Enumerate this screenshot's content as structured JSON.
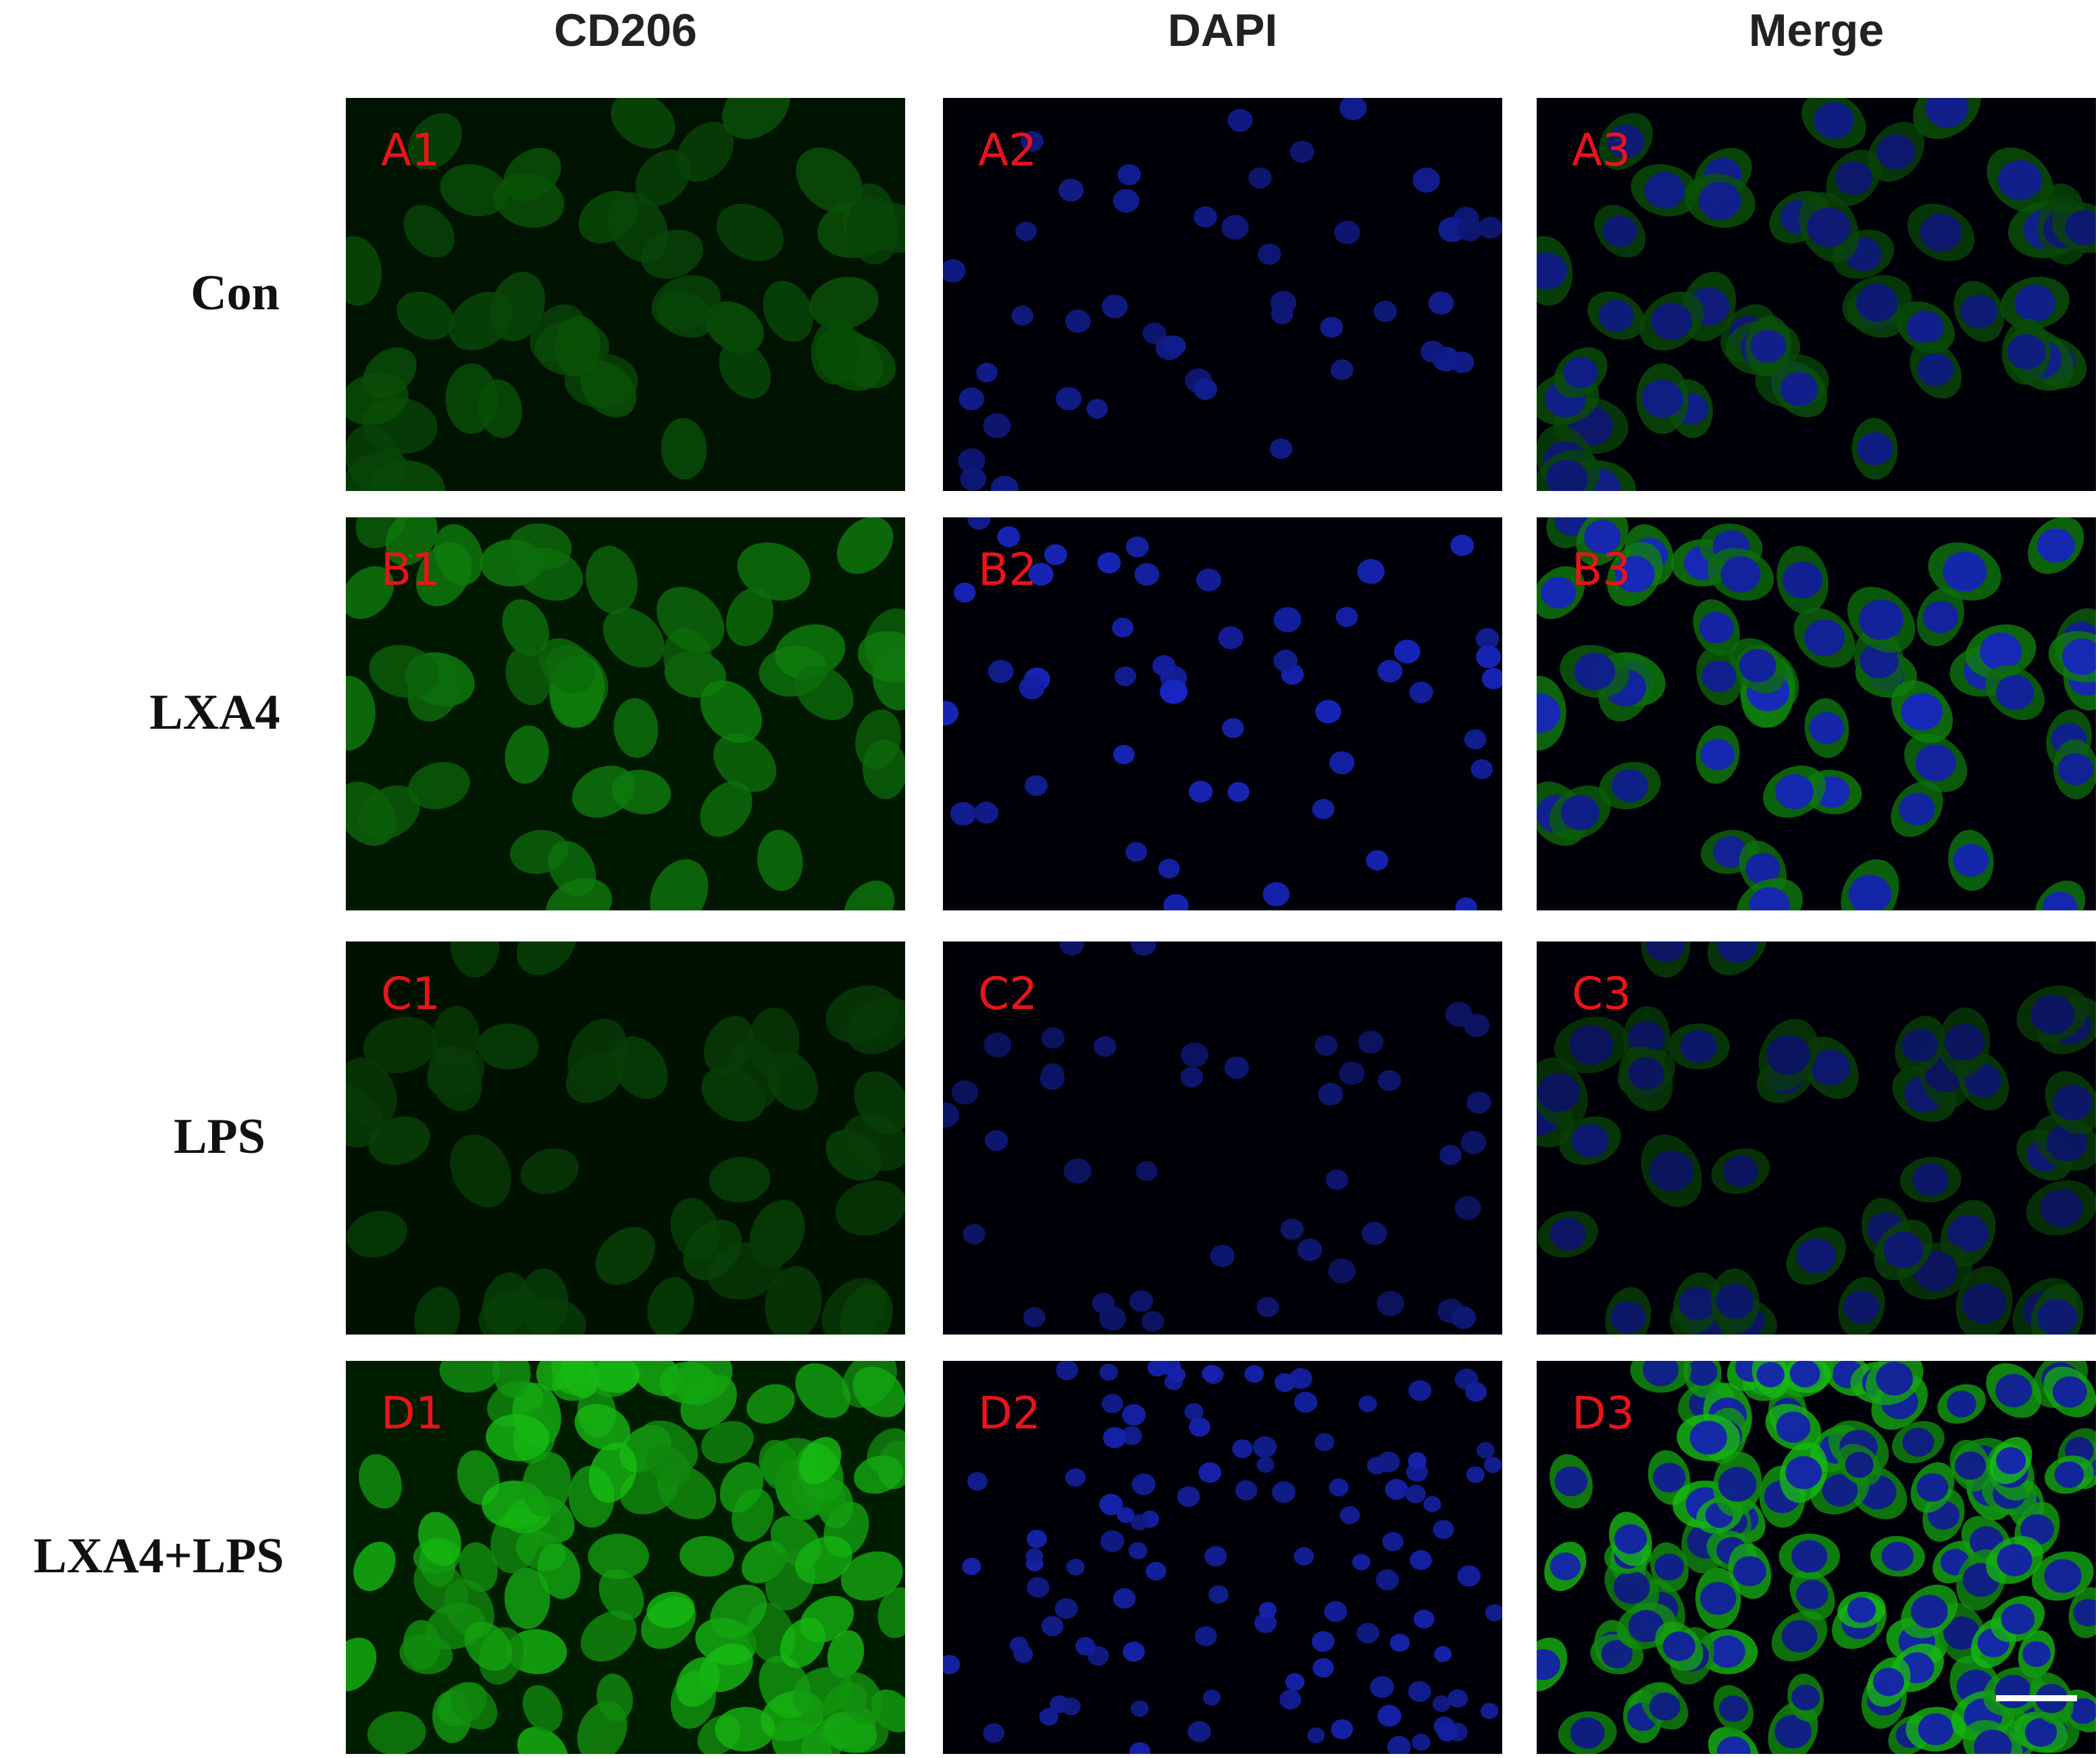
{
  "header": {
    "columns": [
      "CD206",
      "DAPI",
      "Merge"
    ]
  },
  "rows": [
    {
      "label": "Con",
      "panels": [
        "A1",
        "A2",
        "A3"
      ]
    },
    {
      "label": "LXA4",
      "panels": [
        "B1",
        "B2",
        "B3"
      ]
    },
    {
      "label": "LPS",
      "panels": [
        "C1",
        "C2",
        "C3"
      ]
    },
    {
      "label": "LXA4+LPS",
      "panels": [
        "D1",
        "D2",
        "D3"
      ]
    }
  ]
}
